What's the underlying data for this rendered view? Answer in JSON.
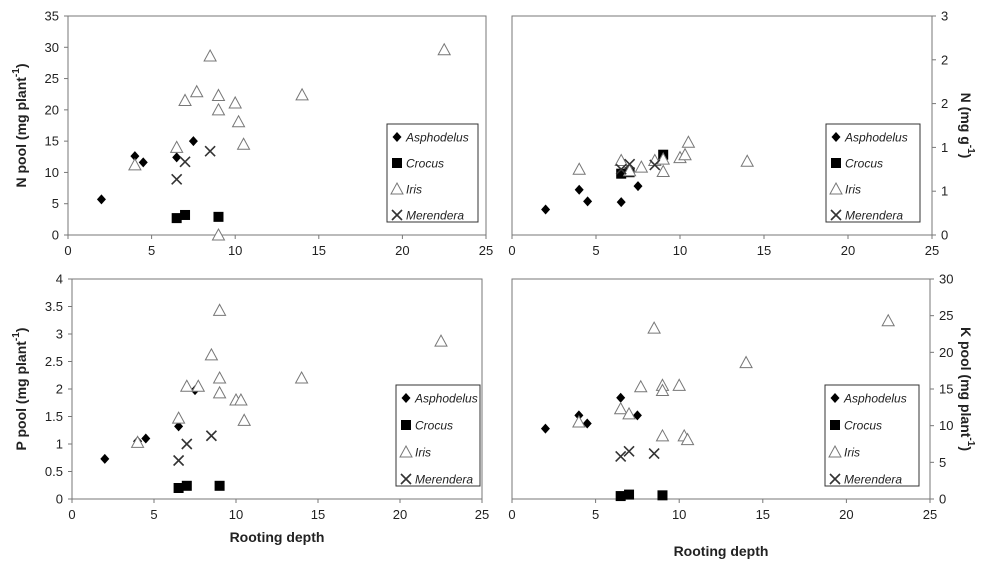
{
  "chart_data": [
    {
      "type": "scatter",
      "xlabel": "",
      "ylabel": "N pool (mg plant-1)",
      "ylabel_main": "N pool (mg plant",
      "ylabel_sup": "-1",
      "ylabel_end": ")",
      "xlim": [
        0,
        25
      ],
      "ylim": [
        0,
        35
      ],
      "xticks": [
        "0",
        "5",
        "10",
        "15",
        "20",
        "25"
      ],
      "yticks": [
        "0",
        "5",
        "10",
        "15",
        "20",
        "25",
        "30",
        "35"
      ],
      "legend_position": "bottom-right",
      "series": [
        {
          "name": "Asphodelus",
          "marker": "diamond",
          "points": [
            [
              2,
              5.7
            ],
            [
              4,
              12.6
            ],
            [
              4.5,
              11.6
            ],
            [
              6.5,
              12.4
            ],
            [
              7.5,
              15
            ]
          ]
        },
        {
          "name": "Crocus",
          "marker": "square",
          "points": [
            [
              6.5,
              2.7
            ],
            [
              7,
              3.2
            ],
            [
              9,
              2.9
            ]
          ]
        },
        {
          "name": "Iris",
          "marker": "triangle",
          "points": [
            [
              4,
              11.2
            ],
            [
              6.5,
              14
            ],
            [
              7,
              21.5
            ],
            [
              7.7,
              22.9
            ],
            [
              8.5,
              28.6
            ],
            [
              9,
              22.3
            ],
            [
              9,
              20
            ],
            [
              10,
              21.1
            ],
            [
              10.2,
              18.1
            ],
            [
              10.5,
              14.5
            ],
            [
              14,
              22.4
            ],
            [
              22.5,
              29.6
            ],
            [
              9,
              -0.3
            ]
          ]
        },
        {
          "name": "Merendera",
          "marker": "cross",
          "points": [
            [
              6.5,
              8.9
            ],
            [
              7,
              11.7
            ],
            [
              8.5,
              13.4
            ]
          ]
        }
      ]
    },
    {
      "type": "scatter",
      "xlabel": "",
      "ylabel": "N (mg g-1)",
      "ylabel_main": "N (mg g",
      "ylabel_sup": "-1",
      "ylabel_end": ")",
      "xlim": [
        0,
        25
      ],
      "ylim": [
        0,
        3
      ],
      "xticks": [
        "0",
        "5",
        "10",
        "15",
        "20",
        "25"
      ],
      "yticks": [
        "0",
        "1",
        "1",
        "2",
        "2",
        "3"
      ],
      "legend_position": "bottom-right",
      "series": [
        {
          "name": "Asphodelus",
          "marker": "diamond",
          "points": [
            [
              2,
              0.35
            ],
            [
              4,
              0.62
            ],
            [
              4.5,
              0.46
            ],
            [
              6.5,
              0.45
            ],
            [
              7.5,
              0.67
            ]
          ]
        },
        {
          "name": "Crocus",
          "marker": "square",
          "points": [
            [
              6.5,
              0.84
            ],
            [
              7,
              0.86
            ],
            [
              9,
              1.1
            ]
          ]
        },
        {
          "name": "Iris",
          "marker": "triangle",
          "points": [
            [
              4,
              0.9
            ],
            [
              6.5,
              1.02
            ],
            [
              7,
              0.88
            ],
            [
              7.7,
              0.93
            ],
            [
              8.5,
              1.02
            ],
            [
              9,
              1.04
            ],
            [
              9,
              0.87
            ],
            [
              10,
              1.06
            ],
            [
              10.3,
              1.1
            ],
            [
              10.5,
              1.27
            ],
            [
              14,
              1.01
            ],
            [
              22.5,
              1.1
            ]
          ]
        },
        {
          "name": "Merendera",
          "marker": "cross",
          "points": [
            [
              6.5,
              0.9
            ],
            [
              7,
              0.97
            ],
            [
              8.5,
              0.96
            ]
          ]
        }
      ]
    },
    {
      "type": "scatter",
      "xlabel": "Rooting depth",
      "ylabel": "P pool (mg plant-1)",
      "ylabel_main": "P pool (mg plant",
      "ylabel_sup": "-1",
      "ylabel_end": ")",
      "xlim": [
        0,
        25
      ],
      "ylim": [
        0,
        4
      ],
      "xticks": [
        "0",
        "5",
        "10",
        "15",
        "20",
        "25"
      ],
      "yticks": [
        "0",
        "0.5",
        "1",
        "1.5",
        "2",
        "2.5",
        "3",
        "3.5",
        "4"
      ],
      "legend_position": "bottom-right",
      "series": [
        {
          "name": "Asphodelus",
          "marker": "diamond",
          "points": [
            [
              2,
              0.73
            ],
            [
              4,
              1.05
            ],
            [
              4.5,
              1.1
            ],
            [
              6.5,
              1.32
            ],
            [
              7.5,
              1.98
            ]
          ]
        },
        {
          "name": "Crocus",
          "marker": "square",
          "points": [
            [
              6.5,
              0.2
            ],
            [
              7,
              0.24
            ],
            [
              9,
              0.24
            ]
          ]
        },
        {
          "name": "Iris",
          "marker": "triangle",
          "points": [
            [
              4,
              1.03
            ],
            [
              6.5,
              1.47
            ],
            [
              7,
              2.05
            ],
            [
              7.7,
              2.05
            ],
            [
              8.5,
              2.62
            ],
            [
              9,
              3.43
            ],
            [
              9,
              2.2
            ],
            [
              9,
              1.93
            ],
            [
              10,
              1.8
            ],
            [
              10.3,
              1.8
            ],
            [
              10.5,
              1.43
            ],
            [
              14,
              2.2
            ],
            [
              22.5,
              2.87
            ]
          ]
        },
        {
          "name": "Merendera",
          "marker": "cross",
          "points": [
            [
              6.5,
              0.7
            ],
            [
              7,
              1
            ],
            [
              8.5,
              1.15
            ]
          ]
        }
      ]
    },
    {
      "type": "scatter",
      "xlabel": "Rooting depth",
      "ylabel": "K pool (mg plant-1)",
      "ylabel_main": "K pool (mg plant",
      "ylabel_sup": "-1",
      "ylabel_end": ")",
      "xlim": [
        0,
        25
      ],
      "ylim": [
        0,
        30
      ],
      "xticks": [
        "0",
        "5",
        "10",
        "15",
        "20",
        "25"
      ],
      "yticks": [
        "0",
        "5",
        "10",
        "15",
        "20",
        "25",
        "30"
      ],
      "legend_position": "bottom-right",
      "series": [
        {
          "name": "Asphodelus",
          "marker": "diamond",
          "points": [
            [
              2,
              9.6
            ],
            [
              4,
              11.4
            ],
            [
              4.5,
              10.3
            ],
            [
              6.5,
              13.8
            ],
            [
              7.5,
              11.4
            ]
          ]
        },
        {
          "name": "Crocus",
          "marker": "square",
          "points": [
            [
              6.5,
              0.4
            ],
            [
              7,
              0.6
            ],
            [
              9,
              0.5
            ]
          ]
        },
        {
          "name": "Iris",
          "marker": "triangle",
          "points": [
            [
              4,
              10.5
            ],
            [
              6.5,
              12.3
            ],
            [
              7,
              11.6
            ],
            [
              7.7,
              15.3
            ],
            [
              8.5,
              23.3
            ],
            [
              9,
              15.5
            ],
            [
              9,
              14.8
            ],
            [
              9,
              8.6
            ],
            [
              10,
              15.5
            ],
            [
              10.3,
              8.6
            ],
            [
              10.5,
              8.1
            ],
            [
              14,
              18.6
            ],
            [
              22.5,
              24.3
            ]
          ]
        },
        {
          "name": "Merendera",
          "marker": "cross",
          "points": [
            [
              6.5,
              5.8
            ],
            [
              7,
              6.5
            ],
            [
              8.5,
              6.2
            ]
          ]
        }
      ]
    }
  ]
}
